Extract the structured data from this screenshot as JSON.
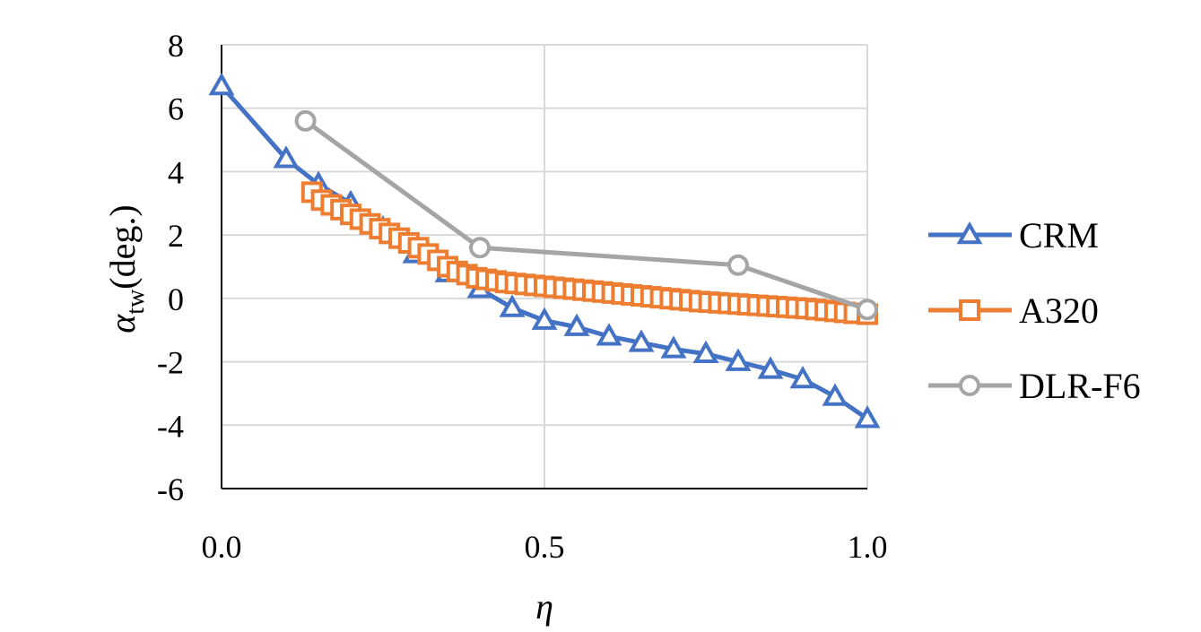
{
  "chart_data": {
    "type": "line",
    "xlabel": "η",
    "ylabel": {
      "symbol": "α",
      "subscript": "tw",
      "unit": "(deg.)"
    },
    "xlim": [
      0.0,
      1.0
    ],
    "ylim": [
      -6,
      8
    ],
    "xticks": [
      "0.0",
      "0.5",
      "1.0"
    ],
    "yticks": [
      "-6",
      "-4",
      "-2",
      "0",
      "2",
      "4",
      "6",
      "8"
    ],
    "grid": true,
    "legend_position": "right",
    "series": [
      {
        "name": "CRM",
        "color": "#4472C4",
        "marker": "triangle",
        "x": [
          0.0,
          0.1,
          0.15,
          0.2,
          0.25,
          0.3,
          0.35,
          0.4,
          0.45,
          0.5,
          0.55,
          0.6,
          0.65,
          0.7,
          0.75,
          0.8,
          0.85,
          0.9,
          0.95,
          1.0
        ],
        "y": [
          6.7,
          4.4,
          3.6,
          3.0,
          2.2,
          1.4,
          0.8,
          0.3,
          -0.3,
          -0.7,
          -0.9,
          -1.2,
          -1.4,
          -1.6,
          -1.75,
          -2.0,
          -2.25,
          -2.55,
          -3.1,
          -3.8
        ]
      },
      {
        "name": "A320",
        "color": "#ED7D31",
        "marker": "square",
        "x": [
          0.14,
          0.155,
          0.17,
          0.185,
          0.2,
          0.215,
          0.23,
          0.245,
          0.26,
          0.275,
          0.29,
          0.305,
          0.32,
          0.335,
          0.35,
          0.365,
          0.38,
          0.395,
          0.41,
          0.425,
          0.44,
          0.455,
          0.47,
          0.485,
          0.5,
          0.515,
          0.53,
          0.545,
          0.56,
          0.575,
          0.59,
          0.605,
          0.62,
          0.635,
          0.65,
          0.665,
          0.68,
          0.695,
          0.71,
          0.725,
          0.74,
          0.755,
          0.77,
          0.785,
          0.8,
          0.815,
          0.83,
          0.845,
          0.86,
          0.875,
          0.89,
          0.905,
          0.92,
          0.935,
          0.95,
          0.965,
          0.98,
          1.0
        ],
        "y": [
          3.35,
          3.1,
          2.95,
          2.8,
          2.65,
          2.5,
          2.35,
          2.2,
          2.05,
          1.9,
          1.75,
          1.6,
          1.4,
          1.2,
          1.0,
          0.85,
          0.75,
          0.65,
          0.6,
          0.55,
          0.5,
          0.47,
          0.44,
          0.41,
          0.38,
          0.35,
          0.32,
          0.29,
          0.26,
          0.23,
          0.2,
          0.17,
          0.14,
          0.11,
          0.08,
          0.05,
          0.02,
          -0.01,
          -0.04,
          -0.07,
          -0.1,
          -0.12,
          -0.14,
          -0.16,
          -0.18,
          -0.2,
          -0.22,
          -0.24,
          -0.26,
          -0.28,
          -0.3,
          -0.32,
          -0.35,
          -0.38,
          -0.41,
          -0.44,
          -0.47,
          -0.5
        ]
      },
      {
        "name": "DLR-F6",
        "color": "#A5A5A5",
        "marker": "circle",
        "x": [
          0.13,
          0.4,
          0.8,
          1.0
        ],
        "y": [
          5.6,
          1.6,
          1.05,
          -0.35
        ]
      }
    ]
  }
}
